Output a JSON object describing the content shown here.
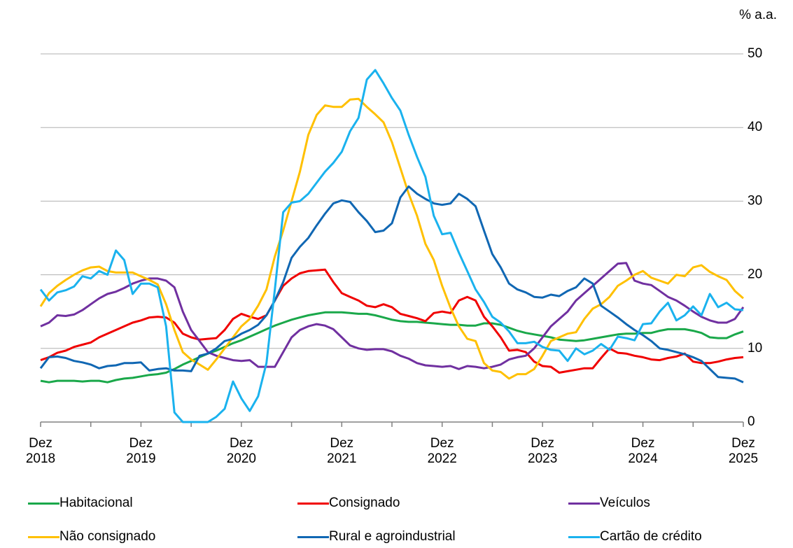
{
  "chart_data": {
    "type": "line",
    "y_axis_label": "% a.a.",
    "categories": [
      "Dez 2018",
      null,
      null,
      null,
      null,
      null,
      null,
      null,
      null,
      null,
      null,
      null,
      "Dez 2019",
      null,
      null,
      null,
      null,
      null,
      null,
      null,
      null,
      null,
      null,
      null,
      "Dez 2020",
      null,
      null,
      null,
      null,
      null,
      null,
      null,
      null,
      null,
      null,
      null,
      "Dez 2021",
      null,
      null,
      null,
      null,
      null,
      null,
      null,
      null,
      null,
      null,
      null,
      "Dez 2022",
      null,
      null,
      null,
      null,
      null,
      null,
      null,
      null,
      null,
      null,
      null,
      "Dez 2023",
      null,
      null,
      null,
      null,
      null,
      null,
      null,
      null,
      null,
      null,
      null,
      "Dez 2024",
      null,
      null,
      null,
      null,
      null,
      null,
      null,
      null,
      null,
      null,
      null,
      "Dez 2025"
    ],
    "ylim": [
      0,
      50
    ],
    "yticks": [
      0,
      10,
      20,
      30,
      40,
      50
    ],
    "grid": true,
    "legend": "bottom",
    "series": [
      {
        "name": "Habitacional",
        "color": "#1aa84a",
        "values": [
          5.6,
          5.4,
          5.6,
          5.6,
          5.6,
          5.5,
          5.6,
          5.6,
          5.4,
          5.7,
          5.9,
          6.0,
          6.2,
          6.4,
          6.5,
          6.7,
          7.2,
          7.8,
          8.3,
          8.8,
          9.3,
          9.7,
          10.2,
          10.7,
          11.1,
          11.6,
          12.1,
          12.6,
          13.1,
          13.5,
          13.9,
          14.2,
          14.5,
          14.7,
          14.9,
          14.9,
          14.9,
          14.8,
          14.7,
          14.7,
          14.5,
          14.2,
          13.9,
          13.7,
          13.6,
          13.6,
          13.5,
          13.4,
          13.3,
          13.2,
          13.2,
          13.1,
          13.1,
          13.4,
          13.4,
          13.2,
          12.8,
          12.4,
          12.1,
          11.9,
          11.7,
          11.5,
          11.2,
          11.1,
          11.0,
          11.1,
          11.3,
          11.5,
          11.7,
          11.9,
          12.0,
          12.0,
          12.1,
          12.1,
          12.4,
          12.6,
          12.6,
          12.6,
          12.4,
          12.1,
          11.5,
          11.4,
          11.4,
          11.9,
          12.3
        ]
      },
      {
        "name": "Consignado",
        "color": "#f00000",
        "values": [
          8.4,
          8.8,
          9.4,
          9.7,
          10.2,
          10.5,
          10.8,
          11.5,
          12.0,
          12.5,
          13.0,
          13.5,
          13.8,
          14.2,
          14.3,
          14.2,
          13.5,
          12.0,
          11.5,
          11.2,
          11.3,
          11.4,
          12.5,
          14.0,
          14.7,
          14.3,
          14.0,
          14.5,
          16.5,
          18.5,
          19.5,
          20.2,
          20.5,
          20.6,
          20.7,
          19.0,
          17.5,
          17.0,
          16.5,
          15.8,
          15.6,
          16.0,
          15.6,
          14.7,
          14.4,
          14.1,
          13.7,
          14.8,
          15.0,
          14.8,
          16.5,
          17.0,
          16.5,
          14.3,
          13.0,
          11.5,
          9.7,
          9.8,
          9.5,
          8.2,
          7.6,
          7.5,
          6.7,
          6.9,
          7.1,
          7.3,
          7.3,
          8.7,
          10.0,
          9.4,
          9.3,
          9.0,
          8.8,
          8.5,
          8.4,
          8.7,
          8.9,
          9.3,
          8.2,
          8.0,
          8.0,
          8.2,
          8.5,
          8.7,
          8.8
        ]
      },
      {
        "name": "Veículos",
        "color": "#7030a0",
        "values": [
          13.0,
          13.5,
          14.5,
          14.4,
          14.6,
          15.2,
          16.0,
          16.8,
          17.4,
          17.7,
          18.2,
          18.8,
          19.2,
          19.5,
          19.5,
          19.2,
          18.3,
          15.0,
          12.5,
          11.0,
          9.5,
          9.0,
          8.7,
          8.4,
          8.3,
          8.4,
          7.5,
          7.5,
          7.5,
          9.5,
          11.5,
          12.5,
          13.0,
          13.3,
          13.1,
          12.6,
          11.5,
          10.4,
          10.0,
          9.8,
          9.9,
          9.9,
          9.6,
          9.0,
          8.6,
          8.0,
          7.7,
          7.6,
          7.5,
          7.6,
          7.2,
          7.6,
          7.5,
          7.3,
          7.5,
          7.8,
          8.5,
          8.8,
          9.0,
          10.0,
          11.5,
          13.0,
          14.0,
          15.0,
          16.5,
          17.5,
          18.5,
          19.5,
          20.5,
          21.5,
          21.6,
          19.2,
          18.8,
          18.6,
          17.8,
          17.0,
          16.5,
          15.8,
          15.0,
          14.3,
          13.8,
          13.5,
          13.5,
          14.0,
          15.6
        ]
      },
      {
        "name": "Não consignado",
        "color": "#ffc000",
        "values": [
          15.7,
          17.5,
          18.5,
          19.3,
          20.0,
          20.6,
          21.0,
          21.1,
          20.5,
          20.3,
          20.3,
          20.3,
          19.8,
          19.3,
          18.7,
          16.0,
          12.5,
          9.5,
          8.5,
          7.8,
          7.1,
          8.5,
          10.0,
          11.5,
          13.0,
          14.0,
          15.8,
          18.0,
          22.5,
          26.0,
          30.0,
          34.0,
          39.0,
          41.7,
          43.0,
          42.8,
          42.8,
          43.8,
          43.9,
          42.8,
          41.8,
          40.7,
          38.0,
          34.5,
          31.0,
          28.0,
          24.2,
          22.0,
          18.5,
          15.5,
          13.0,
          11.3,
          11.0,
          8.0,
          7.0,
          6.8,
          5.9,
          6.5,
          6.5,
          7.2,
          9.0,
          11.0,
          11.5,
          12.0,
          12.2,
          14.0,
          15.4,
          16.0,
          17.0,
          18.5,
          19.2,
          20.0,
          20.5,
          19.6,
          19.2,
          18.8,
          20.0,
          19.8,
          21.0,
          21.3,
          20.4,
          19.8,
          19.3,
          17.8,
          16.8
        ]
      },
      {
        "name": "Rural e agroindustrial",
        "color": "#1067b3",
        "values": [
          7.3,
          8.8,
          8.9,
          8.7,
          8.3,
          8.1,
          7.8,
          7.3,
          7.6,
          7.7,
          8.0,
          8.0,
          8.1,
          7.0,
          7.2,
          7.3,
          7.0,
          7.0,
          6.9,
          9.0,
          9.3,
          10.0,
          11.0,
          11.3,
          12.0,
          12.5,
          13.2,
          14.5,
          16.5,
          19.0,
          22.3,
          23.8,
          25.0,
          26.7,
          28.3,
          29.7,
          30.1,
          29.9,
          28.5,
          27.3,
          25.8,
          26.0,
          27.0,
          30.5,
          32.0,
          31.0,
          30.3,
          29.7,
          29.5,
          29.7,
          31.0,
          30.3,
          29.3,
          26.0,
          22.8,
          21.0,
          18.8,
          18.0,
          17.6,
          17.0,
          16.9,
          17.3,
          17.1,
          17.8,
          18.3,
          19.5,
          18.8,
          15.8,
          15.0,
          14.2,
          13.3,
          12.5,
          11.8,
          11.0,
          10.0,
          9.8,
          9.5,
          9.2,
          8.8,
          8.3,
          7.2,
          6.1,
          6.0,
          5.9,
          5.4
        ]
      },
      {
        "name": "Cartão de crédito",
        "color": "#1ab2ee",
        "values": [
          18.0,
          16.5,
          17.6,
          17.9,
          18.4,
          19.8,
          19.5,
          20.5,
          20.0,
          23.3,
          22.0,
          17.4,
          18.8,
          18.8,
          18.3,
          13.0,
          1.3,
          0,
          0,
          0,
          0,
          0.7,
          1.8,
          5.5,
          3.2,
          1.5,
          3.5,
          8.0,
          18.0,
          28.5,
          29.8,
          30.0,
          31.0,
          32.5,
          34.0,
          35.2,
          36.7,
          39.5,
          41.3,
          46.5,
          47.8,
          46.0,
          44.0,
          42.3,
          39.0,
          36.0,
          33.3,
          28.0,
          25.5,
          25.7,
          23.0,
          20.5,
          18.0,
          16.3,
          14.3,
          13.5,
          12.3,
          10.7,
          10.7,
          10.9,
          10.2,
          9.8,
          9.7,
          8.3,
          10.0,
          9.2,
          9.7,
          10.6,
          9.8,
          11.6,
          11.4,
          11.1,
          13.3,
          13.4,
          15.0,
          16.2,
          13.8,
          14.5,
          15.7,
          14.5,
          17.4,
          15.6,
          16.2,
          15.3,
          15.2
        ]
      }
    ]
  }
}
